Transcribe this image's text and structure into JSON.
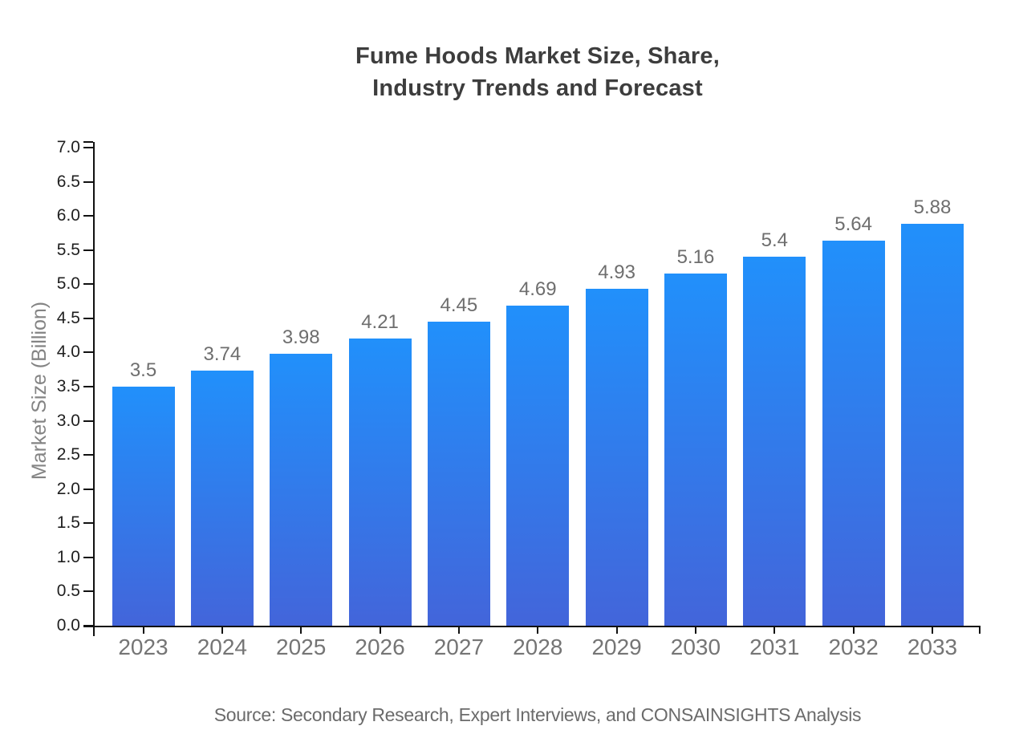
{
  "chart": {
    "title": "Fume Hoods Market Size, Share,\nIndustry Trends and Forecast",
    "source": "Source: Secondary Research, Expert Interviews, and CONSAINSIGHTS Analysis"
  },
  "chart_data": {
    "type": "bar",
    "title": "Fume Hoods Market Size, Share, Industry Trends and Forecast",
    "categories": [
      "2023",
      "2024",
      "2025",
      "2026",
      "2027",
      "2028",
      "2029",
      "2030",
      "2031",
      "2032",
      "2033"
    ],
    "values": [
      3.5,
      3.74,
      3.98,
      4.21,
      4.45,
      4.69,
      4.93,
      5.16,
      5.4,
      5.64,
      5.88
    ],
    "value_labels": [
      "3.5",
      "3.74",
      "3.98",
      "4.21",
      "4.45",
      "4.69",
      "4.93",
      "5.16",
      "5.4",
      "5.64",
      "5.88"
    ],
    "xlabel": "",
    "ylabel": "Market Size (Billion)",
    "ylim": [
      0,
      7
    ],
    "y_tick_step": 0.5,
    "y_ticks": [
      "0.0",
      "0.5",
      "1.0",
      "1.5",
      "2.0",
      "2.5",
      "3.0",
      "3.5",
      "4.0",
      "4.5",
      "5.0",
      "5.5",
      "6.0",
      "6.5",
      "7.0"
    ],
    "grid": false,
    "legend": false,
    "colors": {
      "bar_gradient_top": "#2190fb",
      "bar_gradient_bottom": "#4365da",
      "axis": "#111111",
      "title_text": "#3d3d3d",
      "x_tick_label": "#757575",
      "y_tick_label": "#1f1f1f",
      "value_label": "#6e6e6e",
      "axis_title": "#848484",
      "source_text": "#6b6b6b"
    }
  }
}
